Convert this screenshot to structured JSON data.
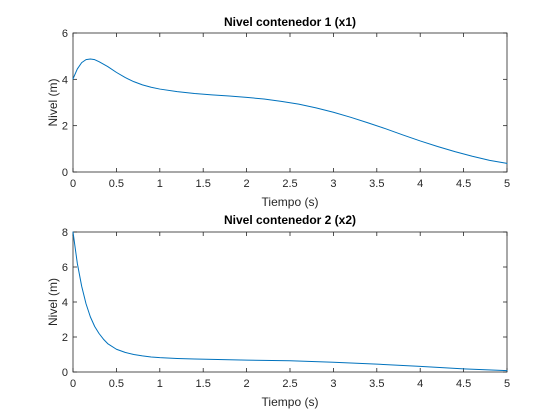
{
  "colors": {
    "line": "#0072BD",
    "axis": "#262626",
    "background": "#ffffff"
  },
  "chart_data": [
    {
      "type": "line",
      "title": "Nivel contenedor 1 (x1)",
      "xlabel": "Tiempo (s)",
      "ylabel": "Nivel (m)",
      "xlim": [
        0,
        5
      ],
      "ylim": [
        0,
        6
      ],
      "xticks": [
        "0",
        "0.5",
        "1",
        "1.5",
        "2",
        "2.5",
        "3",
        "3.5",
        "4",
        "4.5",
        "5"
      ],
      "yticks": [
        "0",
        "2",
        "4",
        "6"
      ],
      "grid": false,
      "legend": "none",
      "x": [
        0,
        0.05,
        0.1,
        0.15,
        0.2,
        0.25,
        0.3,
        0.4,
        0.5,
        0.6,
        0.7,
        0.8,
        0.9,
        1.0,
        1.2,
        1.4,
        1.6,
        1.8,
        2.0,
        2.2,
        2.4,
        2.6,
        2.8,
        3.0,
        3.2,
        3.4,
        3.6,
        3.8,
        4.0,
        4.2,
        4.4,
        4.6,
        4.8,
        5.0
      ],
      "y": [
        4.02,
        4.45,
        4.72,
        4.85,
        4.88,
        4.85,
        4.76,
        4.55,
        4.3,
        4.08,
        3.9,
        3.76,
        3.66,
        3.58,
        3.47,
        3.39,
        3.33,
        3.28,
        3.22,
        3.15,
        3.05,
        2.93,
        2.77,
        2.58,
        2.36,
        2.12,
        1.87,
        1.6,
        1.34,
        1.1,
        0.88,
        0.68,
        0.5,
        0.37
      ]
    },
    {
      "type": "line",
      "title": "Nivel contenedor 2 (x2)",
      "xlabel": "Tiempo (s)",
      "ylabel": "Nivel (m)",
      "xlim": [
        0,
        5
      ],
      "ylim": [
        0,
        8
      ],
      "xticks": [
        "0",
        "0.5",
        "1",
        "1.5",
        "2",
        "2.5",
        "3",
        "3.5",
        "4",
        "4.5",
        "5"
      ],
      "yticks": [
        "0",
        "2",
        "4",
        "6",
        "8"
      ],
      "grid": false,
      "legend": "none",
      "x": [
        0,
        0.05,
        0.1,
        0.15,
        0.2,
        0.25,
        0.3,
        0.35,
        0.4,
        0.5,
        0.6,
        0.7,
        0.8,
        0.9,
        1.0,
        1.2,
        1.4,
        1.6,
        1.8,
        2.0,
        2.5,
        3.0,
        3.5,
        4.0,
        4.5,
        5.0
      ],
      "y": [
        8.0,
        6.2,
        4.9,
        3.9,
        3.15,
        2.6,
        2.2,
        1.88,
        1.62,
        1.3,
        1.12,
        1.0,
        0.92,
        0.86,
        0.82,
        0.77,
        0.74,
        0.72,
        0.7,
        0.68,
        0.64,
        0.56,
        0.45,
        0.32,
        0.18,
        0.08
      ]
    }
  ]
}
